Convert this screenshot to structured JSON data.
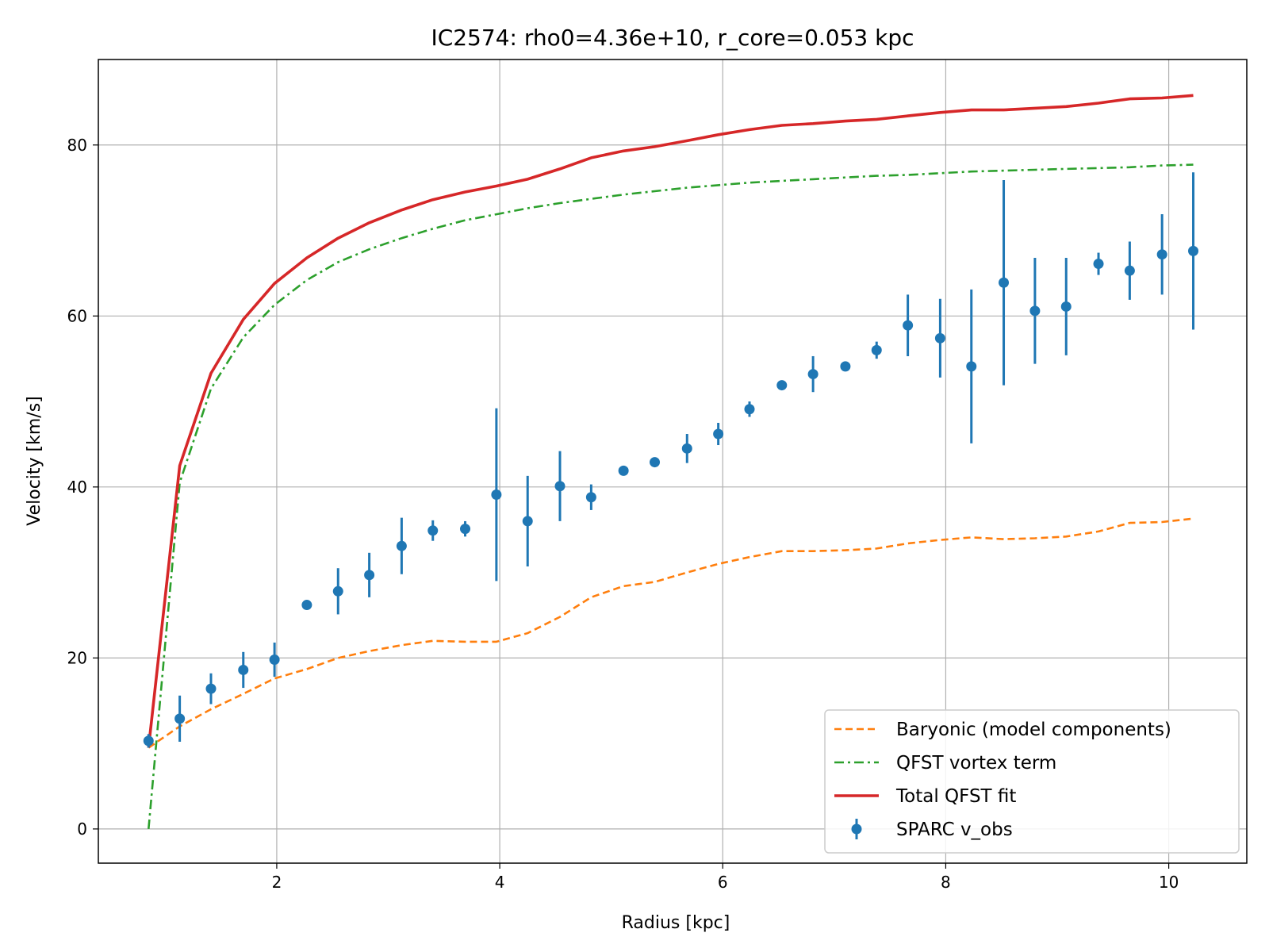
{
  "chart_data": {
    "type": "line",
    "title": "IC2574: rho0=4.36e+10, r_core=0.053 kpc",
    "xlabel": "Radius [kpc]",
    "ylabel": "Velocity [km/s]",
    "xlim": [
      0.4,
      10.7
    ],
    "ylim": [
      -4,
      90
    ],
    "xticks": [
      2,
      4,
      6,
      8,
      10
    ],
    "yticks": [
      0,
      20,
      40,
      60,
      80
    ],
    "grid": true,
    "legend_position": "lower-right",
    "x": [
      0.85,
      1.13,
      1.41,
      1.7,
      1.98,
      2.27,
      2.55,
      2.83,
      3.12,
      3.4,
      3.69,
      3.97,
      4.25,
      4.54,
      4.82,
      5.11,
      5.39,
      5.68,
      5.96,
      6.24,
      6.53,
      6.81,
      7.1,
      7.38,
      7.66,
      7.95,
      8.23,
      8.52,
      8.8,
      9.08,
      9.37,
      9.65,
      9.94,
      10.22
    ],
    "series": [
      {
        "name": "Baryonic (model components)",
        "style": "dashed",
        "color": "#ff7f0e",
        "values": [
          9.5,
          12.0,
          14.0,
          15.8,
          17.6,
          18.7,
          20.0,
          20.8,
          21.5,
          22.0,
          21.9,
          21.9,
          22.9,
          24.8,
          27.1,
          28.4,
          28.9,
          30.0,
          31.0,
          31.8,
          32.5,
          32.5,
          32.6,
          32.8,
          33.4,
          33.8,
          34.1,
          33.9,
          34.0,
          34.2,
          34.8,
          35.8,
          35.9,
          36.3
        ]
      },
      {
        "name": "QFST vortex term",
        "style": "dashdot",
        "color": "#2ca02c",
        "values": [
          0.0,
          40.5,
          51.5,
          57.5,
          61.3,
          64.2,
          66.3,
          67.8,
          69.1,
          70.2,
          71.2,
          71.9,
          72.6,
          73.2,
          73.7,
          74.2,
          74.6,
          75.0,
          75.3,
          75.6,
          75.8,
          76.0,
          76.2,
          76.4,
          76.5,
          76.7,
          76.9,
          77.0,
          77.1,
          77.2,
          77.3,
          77.4,
          77.6,
          77.7
        ]
      },
      {
        "name": "Total QFST fit",
        "style": "solid",
        "color": "#d62728",
        "values": [
          9.5,
          42.5,
          53.3,
          59.6,
          63.8,
          66.8,
          69.1,
          70.9,
          72.4,
          73.6,
          74.5,
          75.2,
          76.0,
          77.2,
          78.5,
          79.3,
          79.8,
          80.5,
          81.2,
          81.8,
          82.3,
          82.5,
          82.8,
          83.0,
          83.4,
          83.8,
          84.1,
          84.1,
          84.3,
          84.5,
          84.9,
          85.4,
          85.5,
          85.8
        ]
      }
    ],
    "observed": {
      "name": "SPARC v_obs",
      "color": "#1f77b4",
      "y": [
        10.3,
        12.9,
        16.4,
        18.6,
        19.8,
        26.2,
        27.8,
        29.7,
        33.1,
        34.9,
        35.1,
        39.1,
        36.0,
        40.1,
        38.8,
        41.9,
        42.9,
        44.5,
        46.2,
        49.1,
        51.9,
        53.2,
        54.1,
        56.0,
        58.9,
        57.4,
        54.1,
        63.9,
        60.6,
        61.1,
        66.1,
        65.3,
        67.2,
        67.6
      ],
      "err": [
        0.8,
        2.7,
        1.8,
        2.1,
        2.0,
        0.5,
        2.7,
        2.6,
        3.3,
        1.2,
        0.9,
        10.1,
        5.3,
        4.1,
        1.5,
        0.5,
        0.5,
        1.7,
        1.3,
        0.9,
        0.5,
        2.1,
        0.5,
        1.0,
        3.6,
        4.6,
        9.0,
        12.0,
        6.2,
        5.7,
        1.3,
        3.4,
        4.7,
        9.2
      ]
    }
  }
}
